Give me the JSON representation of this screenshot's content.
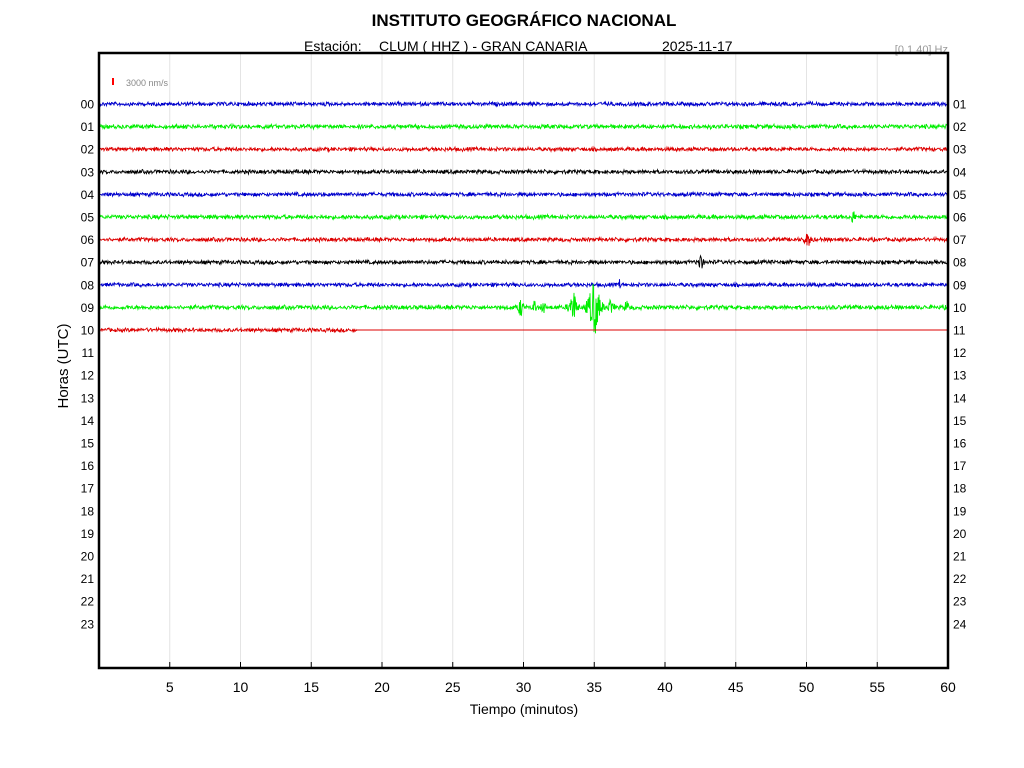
{
  "header": {
    "title": "INSTITUTO GEOGRÁFICO NACIONAL",
    "station_label": "Estación:",
    "station": "CLUM ( HHZ ) - GRAN CANARIA",
    "date": "2025-11-17",
    "filter": "[0.1 40] Hz"
  },
  "scale": {
    "label": "3000 nm/s",
    "color": "#ff0000"
  },
  "chart_data": {
    "type": "line",
    "title": "INSTITUTO GEOGRÁFICO NACIONAL",
    "xlabel": "Tiempo (minutos)",
    "ylabel": "Horas (UTC)",
    "xlim": [
      0,
      60
    ],
    "x_ticks": [
      5,
      10,
      15,
      20,
      25,
      30,
      35,
      40,
      45,
      50,
      55,
      60
    ],
    "grid_x": true,
    "left_labels": [
      "00",
      "01",
      "02",
      "03",
      "04",
      "05",
      "06",
      "07",
      "08",
      "09",
      "10",
      "11",
      "12",
      "13",
      "14",
      "15",
      "16",
      "17",
      "18",
      "19",
      "20",
      "21",
      "22",
      "23"
    ],
    "right_labels": [
      "01",
      "02",
      "03",
      "04",
      "05",
      "06",
      "07",
      "08",
      "09",
      "10",
      "11",
      "12",
      "13",
      "14",
      "15",
      "16",
      "17",
      "18",
      "19",
      "20",
      "21",
      "22",
      "23",
      "24"
    ],
    "color_cycle": [
      "#0000cc",
      "#00ee00",
      "#dd0000",
      "#000000"
    ],
    "traces": [
      {
        "hour": 0,
        "color": "#0000cc",
        "end_minute": 60,
        "noise": 2,
        "events": []
      },
      {
        "hour": 1,
        "color": "#00ee00",
        "end_minute": 60,
        "noise": 2.2,
        "events": []
      },
      {
        "hour": 2,
        "color": "#dd0000",
        "end_minute": 60,
        "noise": 2,
        "events": []
      },
      {
        "hour": 3,
        "color": "#000000",
        "end_minute": 60,
        "noise": 2,
        "events": []
      },
      {
        "hour": 4,
        "color": "#0000cc",
        "end_minute": 60,
        "noise": 2,
        "events": []
      },
      {
        "hour": 5,
        "color": "#00ee00",
        "end_minute": 60,
        "noise": 2.2,
        "events": [
          {
            "minute": 53.3,
            "amplitude": 7,
            "duration": 0.3
          }
        ]
      },
      {
        "hour": 6,
        "color": "#dd0000",
        "end_minute": 60,
        "noise": 2,
        "events": [
          {
            "minute": 50.1,
            "amplitude": 7,
            "duration": 0.5
          }
        ]
      },
      {
        "hour": 7,
        "color": "#000000",
        "end_minute": 60,
        "noise": 2,
        "events": [
          {
            "minute": 42.5,
            "amplitude": 9,
            "duration": 0.4
          }
        ]
      },
      {
        "hour": 8,
        "color": "#0000cc",
        "end_minute": 60,
        "noise": 2,
        "events": [
          {
            "minute": 36.8,
            "amplitude": 8,
            "duration": 0.1
          }
        ]
      },
      {
        "hour": 9,
        "color": "#00ee00",
        "end_minute": 60,
        "noise": 2.2,
        "events": [
          {
            "minute": 29.8,
            "amplitude": 10,
            "duration": 0.4
          },
          {
            "minute": 30.8,
            "amplitude": 8,
            "duration": 0.3
          },
          {
            "minute": 31.4,
            "amplitude": 7,
            "duration": 0.3
          },
          {
            "minute": 33.5,
            "amplitude": 18,
            "duration": 0.6
          },
          {
            "minute": 35.0,
            "amplitude": 30,
            "duration": 0.9
          },
          {
            "minute": 36.2,
            "amplitude": 10,
            "duration": 0.4
          },
          {
            "minute": 37.3,
            "amplitude": 8,
            "duration": 0.3
          }
        ]
      },
      {
        "hour": 10,
        "color": "#dd0000",
        "end_minute": 18.2,
        "noise": 2,
        "events": []
      }
    ]
  }
}
